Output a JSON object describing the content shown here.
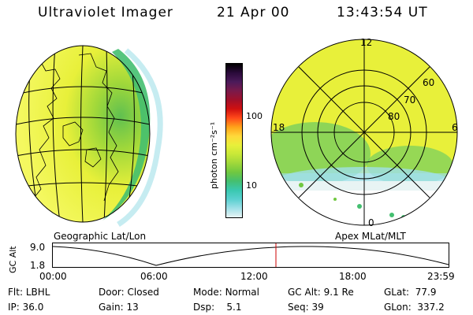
{
  "header": {
    "title": "Ultraviolet Imager",
    "date": "21 Apr 00",
    "time": "13:43:54 UT"
  },
  "colorbar": {
    "unit_label": "photon cm⁻²s⁻¹",
    "ticks": [
      "100",
      "10"
    ],
    "colors": [
      "#000000",
      "#2a0a3a",
      "#4b1a5a",
      "#7a1a4a",
      "#a0102a",
      "#d01010",
      "#ff4a1a",
      "#ffa21a",
      "#ffd83a",
      "#e8f03a",
      "#c8e838",
      "#a0d83a",
      "#70c840",
      "#44bf70",
      "#3ac8b0",
      "#5ad0d0",
      "#a0e0e8",
      "#e8f4f4"
    ]
  },
  "left_panel": {
    "caption": "Geographic Lat/Lon"
  },
  "right_panel": {
    "caption": "Apex MLat/MLT",
    "mlt_labels": {
      "top": "12",
      "left": "18",
      "right": "6",
      "bottom": "0"
    },
    "lat_labels": [
      "60",
      "70",
      "80"
    ]
  },
  "altitude_plot": {
    "ylabel": "GC Alt",
    "y_ticks": [
      "9.0",
      "1.8"
    ],
    "x_ticks": [
      "00:00",
      "06:00",
      "12:00",
      "18:00",
      "23:59"
    ],
    "marker_color": "#cc0000"
  },
  "info": {
    "flt_label": "Flt:",
    "flt_value": "LBHL",
    "ip_label": "IP:",
    "ip_value": "36.0",
    "door_label": "Door:",
    "door_value": "Closed",
    "gain_label": "Gain:",
    "gain_value": "13",
    "mode_label": "Mode:",
    "mode_value": "Normal",
    "dsp_label": "Dsp:",
    "dsp_value": "5.1",
    "gcalt_label": "GC Alt:",
    "gcalt_value": "9.1 Re",
    "seq_label": "Seq:",
    "seq_value": "39",
    "glat_label": "GLat:",
    "glat_value": "77.9",
    "glon_label": "GLon:",
    "glon_value": "337.2"
  }
}
